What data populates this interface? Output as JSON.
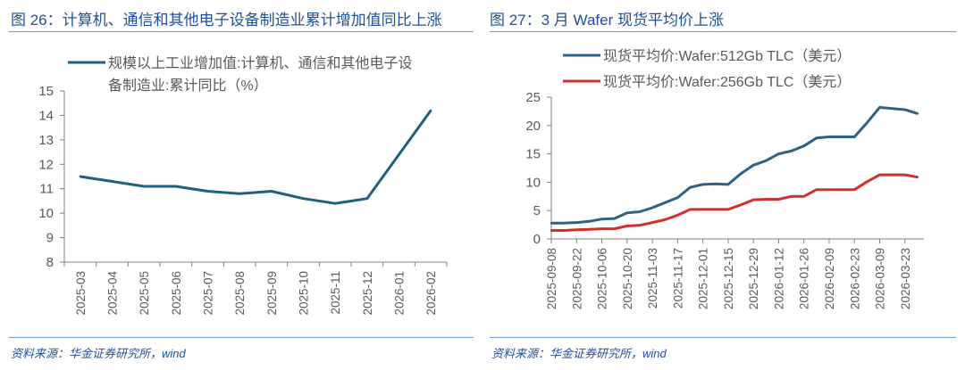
{
  "left": {
    "title": "图 26：计算机、通信和其他电子设备制造业累计增加值同比上涨",
    "source": "资料来源：华金证券研究所，wind"
  },
  "right": {
    "title": "图 27：3 月 Wafer 现货平均价上涨",
    "source": "资料来源：华金证券研究所，wind"
  },
  "chart_data": [
    {
      "type": "line",
      "categories": [
        "2025-03",
        "2025-04",
        "2025-05",
        "2025-06",
        "2025-07",
        "2025-08",
        "2025-09",
        "2025-10",
        "2025-11",
        "2025-12",
        "2026-01",
        "2026-02"
      ],
      "series": [
        {
          "name": "规模以上工业增加值:计算机、通信和其他电子设备制造业:累计同比（%）",
          "legend_lines": [
            "规模以上工业增加值:计算机、通信和其他电子设",
            "备制造业:累计同比（%）"
          ],
          "color": "#1f5f7f",
          "values": [
            11.5,
            11.3,
            11.1,
            11.1,
            10.9,
            10.8,
            10.9,
            10.6,
            10.4,
            10.6,
            null,
            14.2
          ]
        }
      ],
      "ylim": [
        8,
        15
      ],
      "yticks": [
        8,
        9,
        10,
        11,
        12,
        13,
        14,
        15
      ],
      "grid": false,
      "legend": "top"
    },
    {
      "type": "line",
      "x": [
        "2025-09-08",
        "2025-09-15",
        "2025-09-22",
        "2025-09-29",
        "2025-10-06",
        "2025-10-13",
        "2025-10-20",
        "2025-10-27",
        "2025-11-03",
        "2025-11-10",
        "2025-11-17",
        "2025-11-24",
        "2025-12-01",
        "2025-12-08",
        "2025-12-15",
        "2025-12-22",
        "2025-12-29",
        "2026-01-05",
        "2026-01-12",
        "2026-01-19",
        "2026-01-26",
        "2026-02-02",
        "2026-02-09",
        "2026-02-16",
        "2026-02-23",
        "2026-03-02",
        "2026-03-09",
        "2026-03-16",
        "2026-03-23",
        "2026-03-30"
      ],
      "xtick_labels": [
        "2025-09-08",
        "2025-09-22",
        "2025-10-06",
        "2025-10-20",
        "2025-11-03",
        "2025-11-17",
        "2025-12-01",
        "2025-12-15",
        "2025-12-29",
        "2026-01-12",
        "2026-01-26",
        "2026-02-09",
        "2026-02-23",
        "2026-03-09",
        "2026-03-23"
      ],
      "series": [
        {
          "name": "现货平均价:Wafer:512Gb TLC（美元）",
          "color": "#2e6286",
          "values": [
            2.8,
            2.8,
            2.9,
            3.1,
            3.5,
            3.6,
            4.6,
            4.8,
            5.5,
            6.4,
            7.3,
            9.1,
            9.6,
            9.7,
            9.6,
            11.5,
            13.0,
            13.8,
            15.0,
            15.5,
            16.4,
            17.8,
            18.0,
            18.0,
            18.0,
            20.5,
            23.2,
            23.0,
            22.8,
            22.1
          ]
        },
        {
          "name": "现货平均价:Wafer:256Gb TLC（美元）",
          "color": "#d0302c",
          "values": [
            1.5,
            1.5,
            1.6,
            1.7,
            1.8,
            1.8,
            2.3,
            2.4,
            2.9,
            3.4,
            4.2,
            5.2,
            5.2,
            5.2,
            5.2,
            6.0,
            6.9,
            7.0,
            7.0,
            7.5,
            7.5,
            8.7,
            8.7,
            8.7,
            8.7,
            10.1,
            11.3,
            11.3,
            11.3,
            10.9
          ]
        }
      ],
      "ylim": [
        0,
        25
      ],
      "yticks": [
        0,
        5,
        10,
        15,
        20,
        25
      ],
      "grid": false,
      "legend": "top"
    }
  ]
}
